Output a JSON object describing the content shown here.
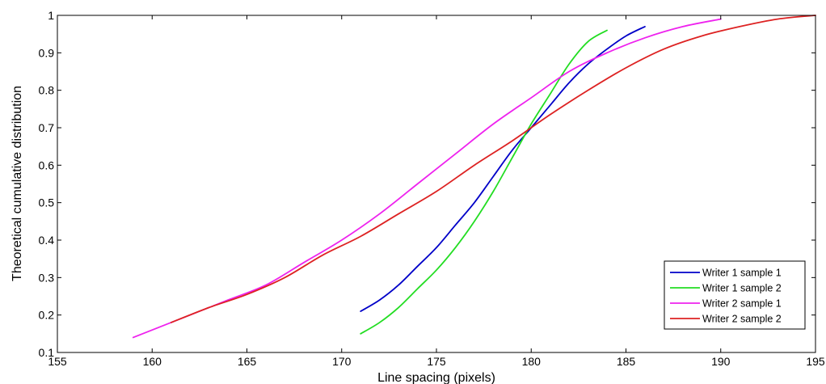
{
  "chart_data": {
    "type": "line",
    "xlabel": "Line spacing (pixels)",
    "ylabel": "Theoretical cumulative distribution",
    "xlim": [
      155,
      195
    ],
    "ylim": [
      0.1,
      1
    ],
    "xticks": [
      155,
      160,
      165,
      170,
      175,
      180,
      185,
      190,
      195
    ],
    "xtick_labels": [
      "155",
      "160",
      "165",
      "170",
      "175",
      "180",
      "185",
      "190",
      "195"
    ],
    "yticks": [
      0.1,
      0.2,
      0.3,
      0.4,
      0.5,
      0.6,
      0.7,
      0.8,
      0.9,
      1
    ],
    "ytick_labels": [
      "0.1",
      "0.2",
      "0.3",
      "0.4",
      "0.5",
      "0.6",
      "0.7",
      "0.8",
      "0.9",
      "1"
    ],
    "grid": false,
    "legend_position": "bottom-right",
    "series": [
      {
        "name": "Writer 1 sample 1",
        "color": "#0000c8",
        "x": [
          171,
          172,
          173,
          174,
          175,
          176,
          177,
          178,
          179,
          180,
          181,
          182,
          183,
          184,
          185,
          186
        ],
        "y": [
          0.21,
          0.24,
          0.28,
          0.33,
          0.38,
          0.44,
          0.5,
          0.57,
          0.64,
          0.7,
          0.76,
          0.82,
          0.87,
          0.91,
          0.945,
          0.97
        ]
      },
      {
        "name": "Writer 1 sample 2",
        "color": "#22dd22",
        "x": [
          171,
          172,
          173,
          174,
          175,
          176,
          177,
          178,
          179,
          180,
          181,
          182,
          183,
          184
        ],
        "y": [
          0.15,
          0.18,
          0.22,
          0.27,
          0.32,
          0.38,
          0.45,
          0.53,
          0.62,
          0.71,
          0.79,
          0.87,
          0.93,
          0.96
        ]
      },
      {
        "name": "Writer 2 sample 1",
        "color": "#ee22ee",
        "x": [
          159,
          160,
          162,
          164,
          166,
          168,
          170,
          172,
          174,
          176,
          178,
          180,
          182,
          184,
          186,
          188,
          190
        ],
        "y": [
          0.14,
          0.16,
          0.2,
          0.24,
          0.28,
          0.34,
          0.4,
          0.47,
          0.55,
          0.63,
          0.71,
          0.78,
          0.85,
          0.9,
          0.94,
          0.97,
          0.99
        ]
      },
      {
        "name": "Writer 2 sample 2",
        "color": "#dd2222",
        "x": [
          161,
          163,
          165,
          167,
          169,
          171,
          173,
          175,
          177,
          179,
          181,
          183,
          185,
          187,
          189,
          191,
          193,
          195
        ],
        "y": [
          0.18,
          0.22,
          0.255,
          0.3,
          0.36,
          0.41,
          0.47,
          0.53,
          0.6,
          0.665,
          0.735,
          0.8,
          0.86,
          0.91,
          0.945,
          0.97,
          0.99,
          1.0
        ]
      }
    ]
  }
}
